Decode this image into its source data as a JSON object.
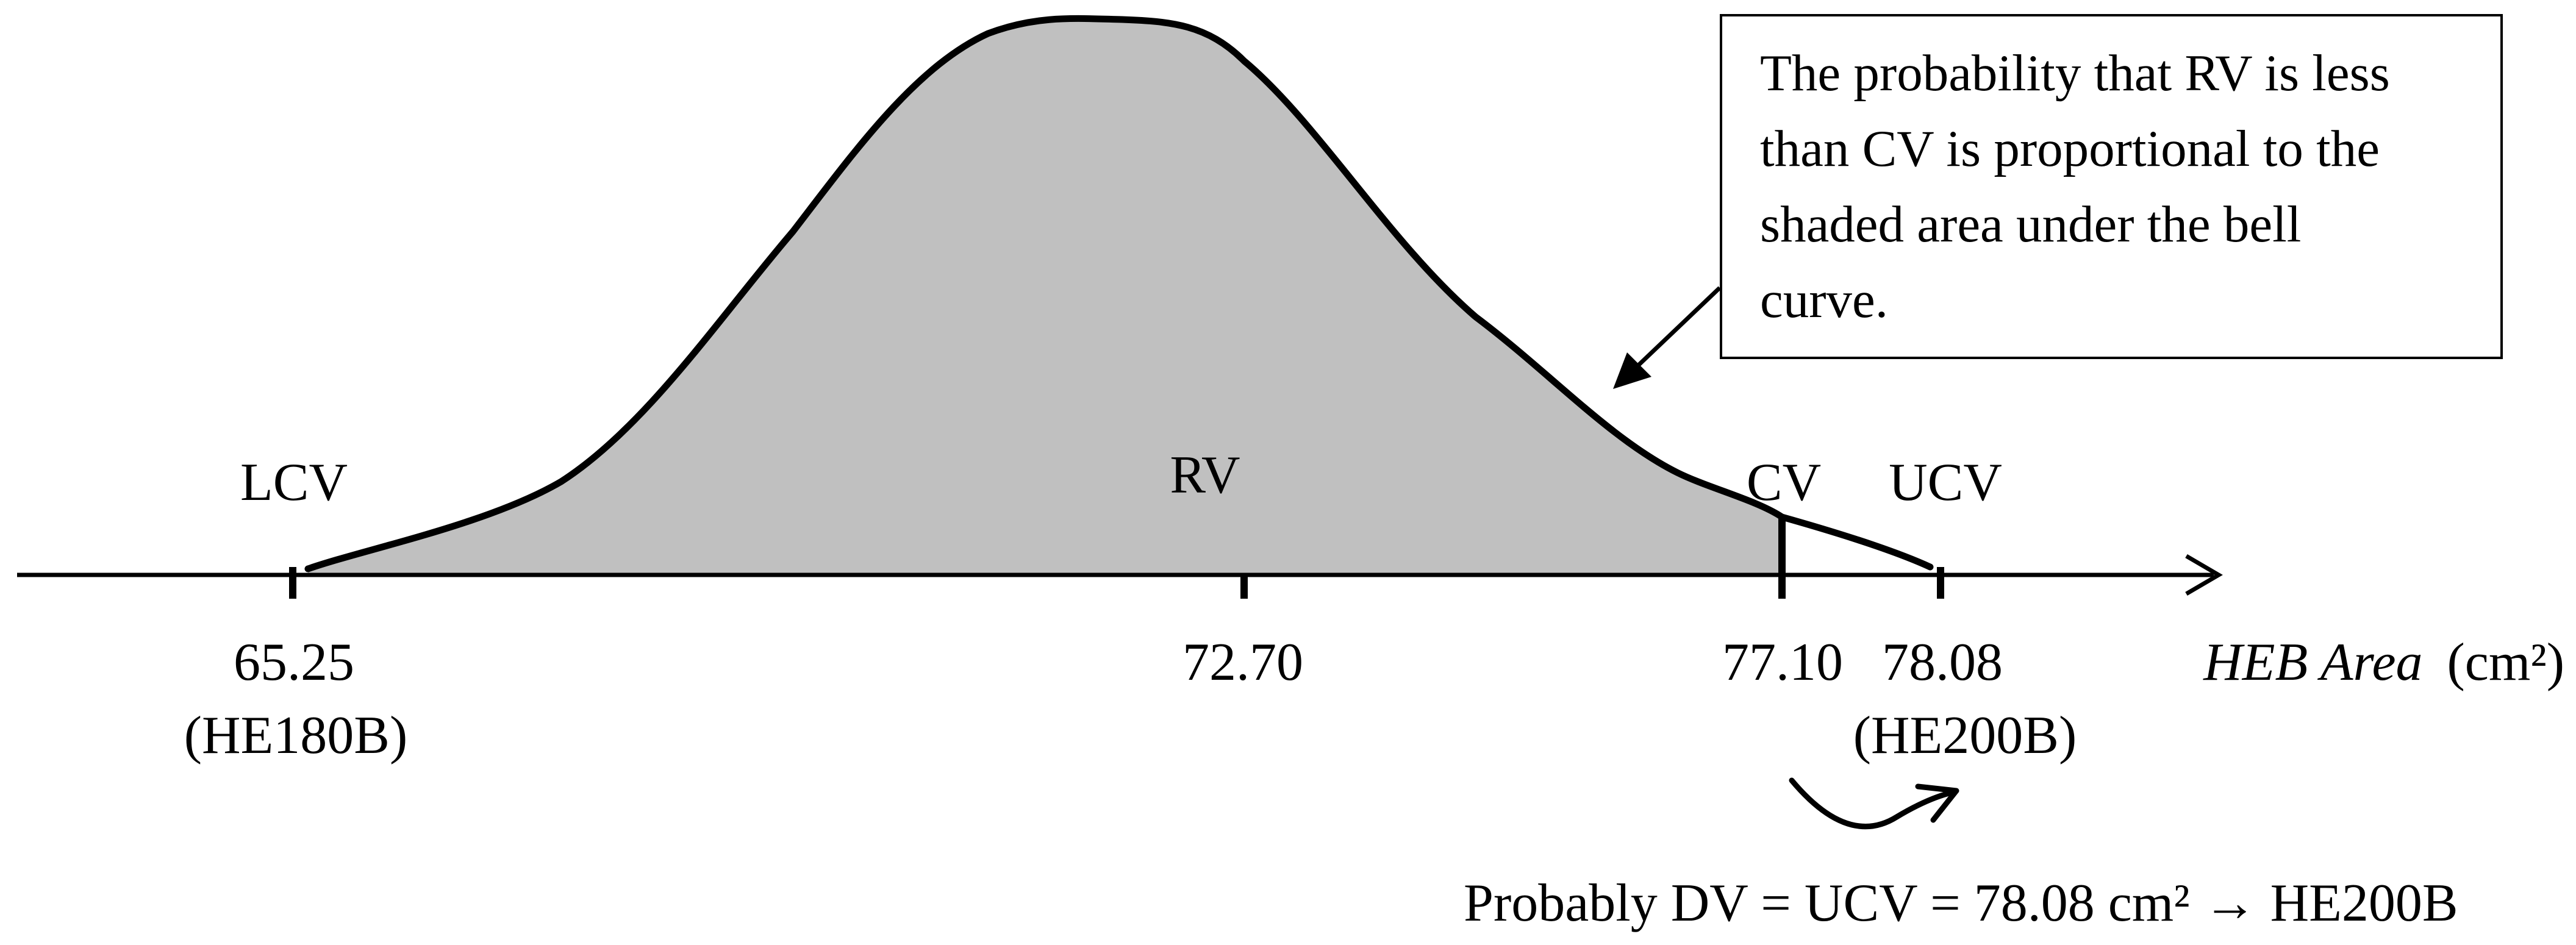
{
  "callout": {
    "lines": [
      "The probability that RV is less",
      "than CV is proportional to the",
      "shaded area under the bell",
      "curve."
    ]
  },
  "axis": {
    "name": "HEB Area",
    "unit": "(cm²)"
  },
  "markers": {
    "lcv": {
      "label": "LCV",
      "value": "65.25",
      "profile": "(HE180B)"
    },
    "rv": {
      "label": "RV",
      "value": "72.70"
    },
    "cv": {
      "label": "CV",
      "value": "77.10"
    },
    "ucv": {
      "label": "UCV",
      "value": "78.08",
      "profile": "(HE200B)"
    }
  },
  "conclusion": "Probably DV = UCV = 78.08 cm² → HE200B",
  "colors": {
    "shade": "#c0c0c0",
    "ink": "#000000",
    "background": "#ffffff"
  }
}
